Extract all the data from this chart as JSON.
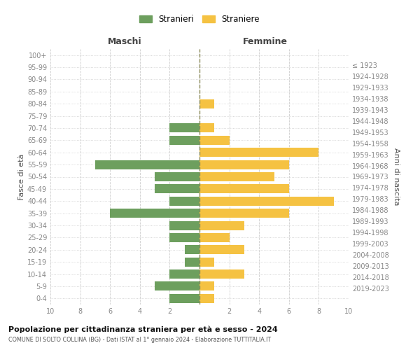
{
  "age_groups_bottom_to_top": [
    "0-4",
    "5-9",
    "10-14",
    "15-19",
    "20-24",
    "25-29",
    "30-34",
    "35-39",
    "40-44",
    "45-49",
    "50-54",
    "55-59",
    "60-64",
    "65-69",
    "70-74",
    "75-79",
    "80-84",
    "85-89",
    "90-94",
    "95-99",
    "100+"
  ],
  "birth_years_bottom_to_top": [
    "2019-2023",
    "2014-2018",
    "2009-2013",
    "2004-2008",
    "1999-2003",
    "1994-1998",
    "1989-1993",
    "1984-1988",
    "1979-1983",
    "1974-1978",
    "1969-1973",
    "1964-1968",
    "1959-1963",
    "1954-1958",
    "1949-1953",
    "1944-1948",
    "1939-1943",
    "1934-1938",
    "1929-1933",
    "1924-1928",
    "≤ 1923"
  ],
  "maschi_bottom_to_top": [
    2,
    3,
    2,
    1,
    1,
    2,
    2,
    6,
    2,
    3,
    3,
    7,
    0,
    2,
    2,
    0,
    0,
    0,
    0,
    0,
    0
  ],
  "femmine_bottom_to_top": [
    1,
    1,
    3,
    1,
    3,
    2,
    3,
    6,
    9,
    6,
    5,
    6,
    8,
    2,
    1,
    0,
    1,
    0,
    0,
    0,
    0
  ],
  "maschi_color": "#6d9f5e",
  "femmine_color": "#f5c242",
  "center_line_color": "#8b8b5a",
  "background_color": "#ffffff",
  "grid_color": "#cccccc",
  "title": "Popolazione per cittadinanza straniera per età e sesso - 2024",
  "subtitle": "COMUNE DI SOLTO COLLINA (BG) - Dati ISTAT al 1° gennaio 2024 - Elaborazione TUTTITALIA.IT",
  "xlabel_left": "Maschi",
  "xlabel_right": "Femmine",
  "ylabel_left": "Fasce di età",
  "ylabel_right": "Anni di nascita",
  "legend_maschi": "Stranieri",
  "legend_femmine": "Straniere",
  "xlim": 10
}
